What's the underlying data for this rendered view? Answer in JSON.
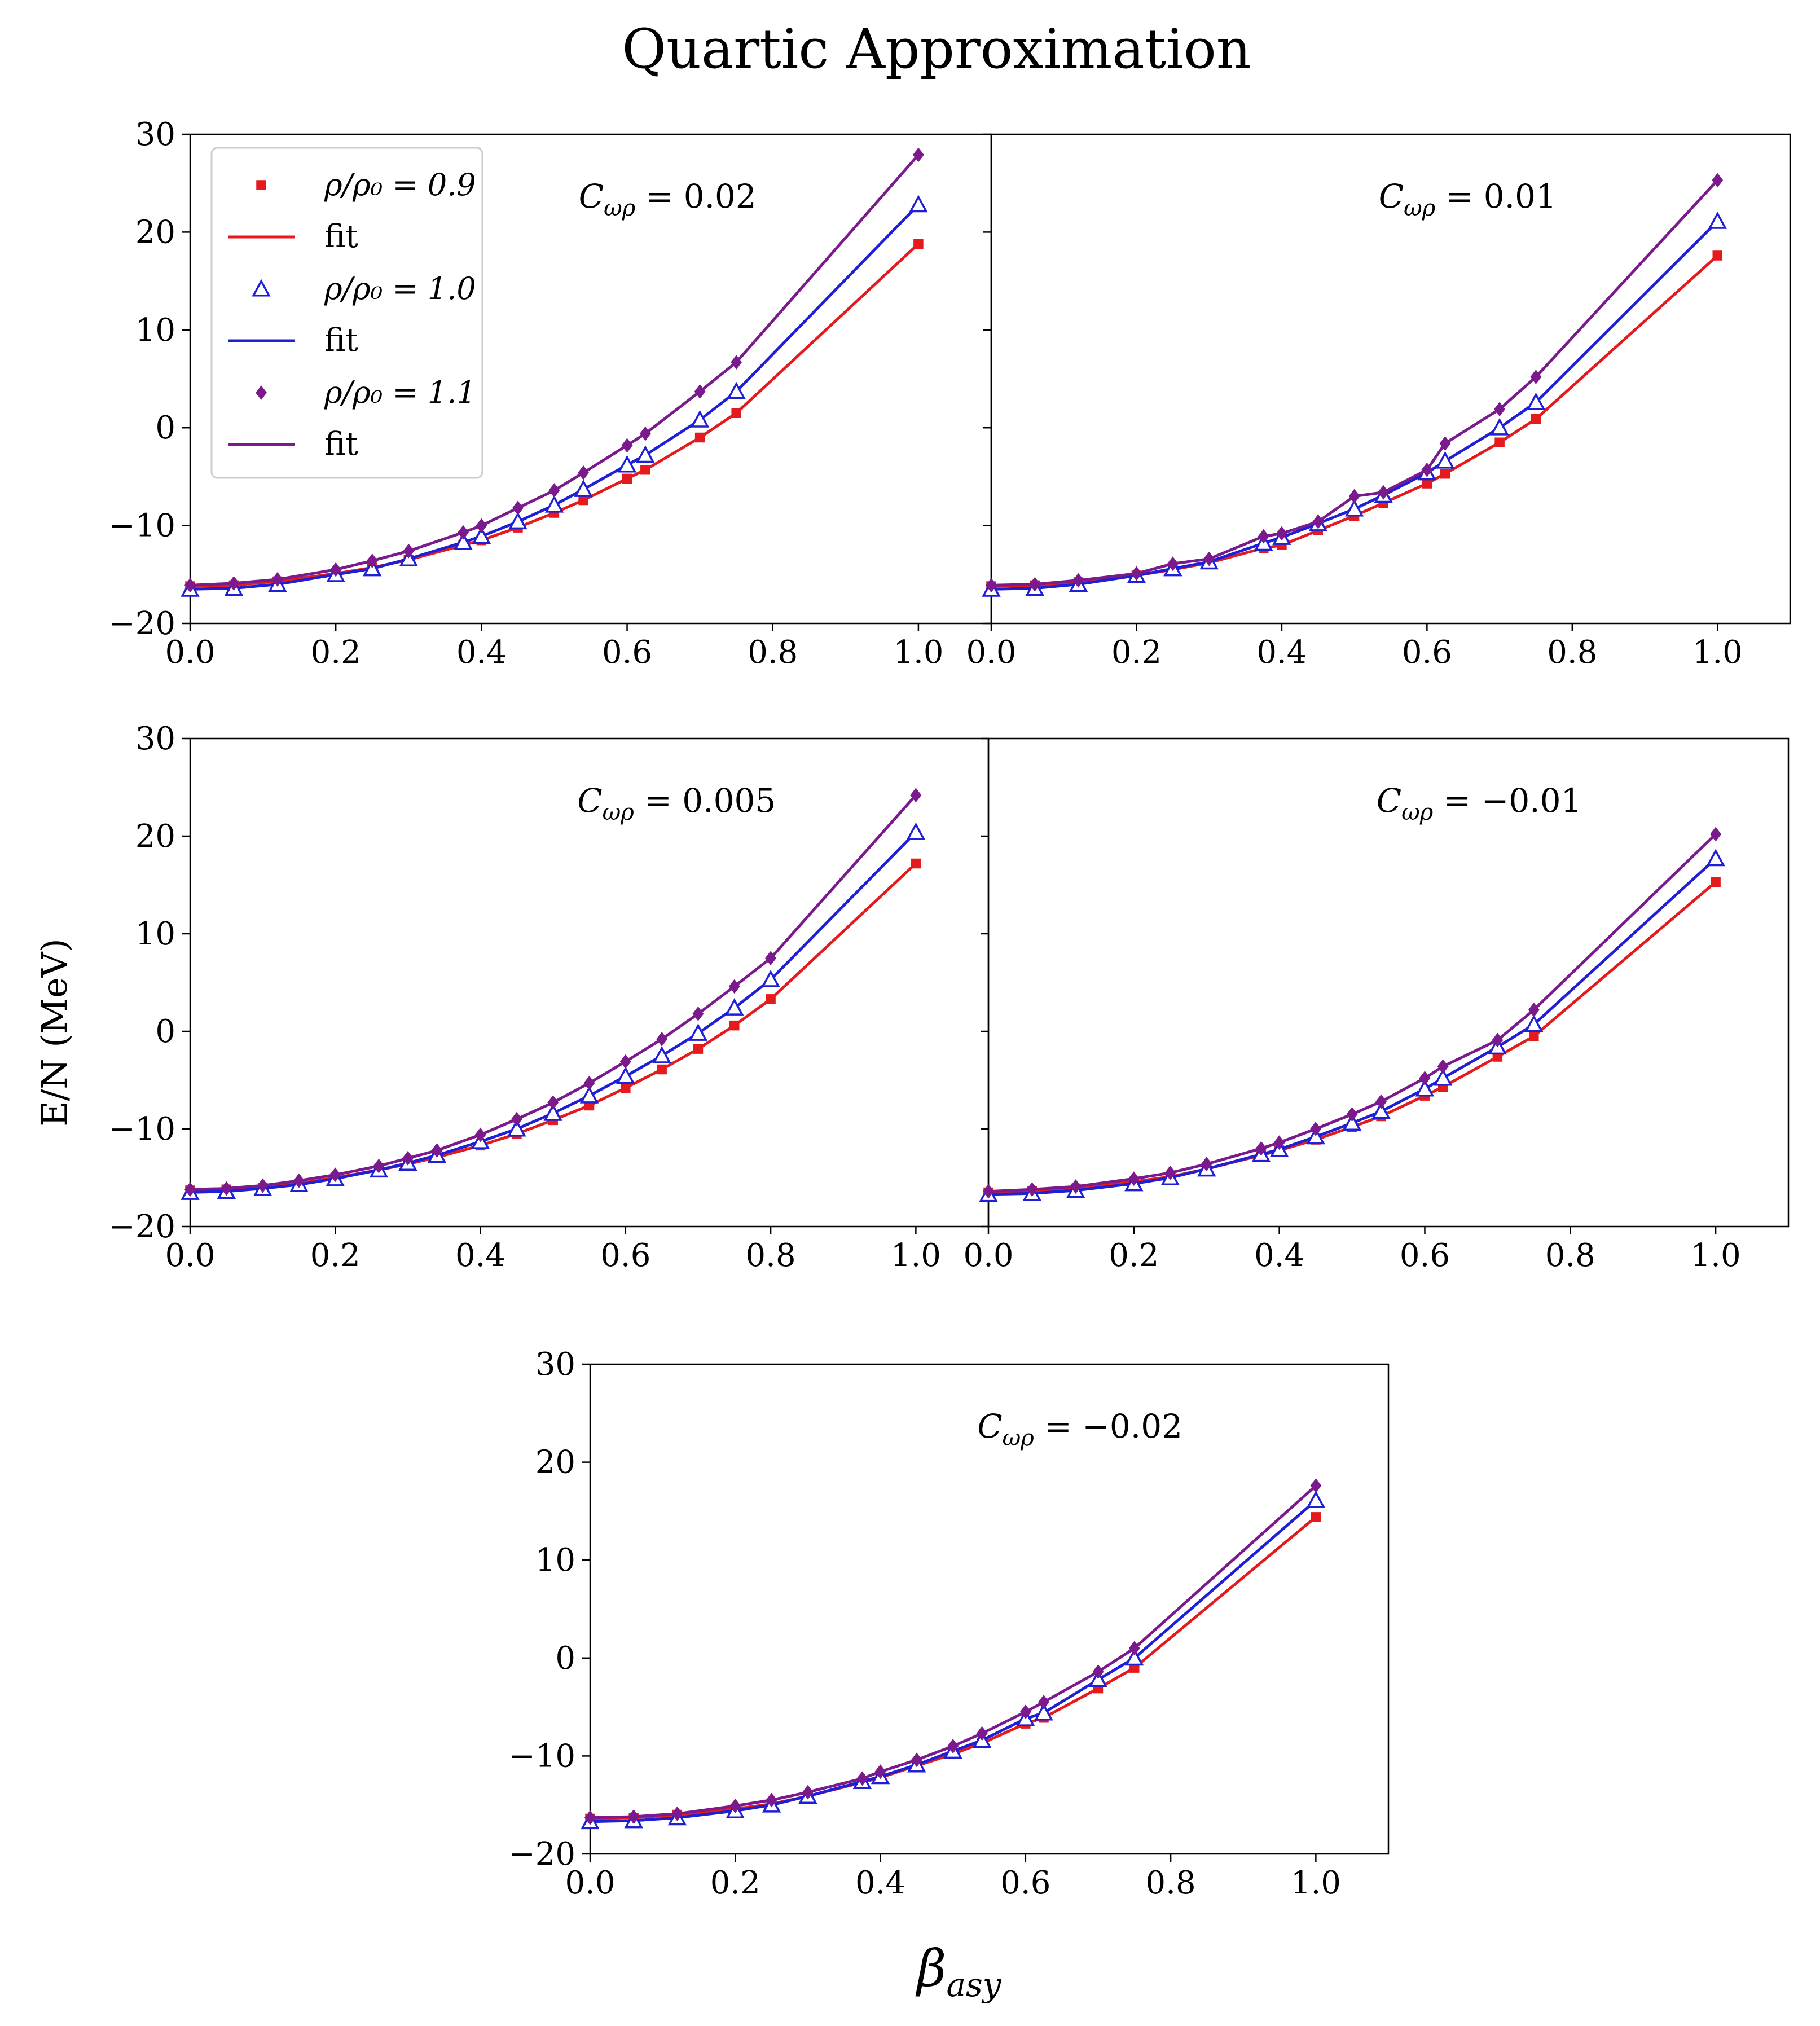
{
  "page": {
    "title": "Quartic Approximation",
    "ylabel": "E/N (MeV)",
    "xlabel": "β_asy"
  },
  "legend": {
    "items": [
      {
        "label": "ρ/ρ₀ = 0.9",
        "kind": "marker",
        "marker": "square",
        "color": "#e41a1c"
      },
      {
        "label": "fit",
        "kind": "line",
        "color": "#e41a1c"
      },
      {
        "label": "ρ/ρ₀ = 1.0",
        "kind": "marker",
        "marker": "triangle",
        "color": "#1f1fd6"
      },
      {
        "label": "fit",
        "kind": "line",
        "color": "#1f1fd6"
      },
      {
        "label": "ρ/ρ₀ = 1.1",
        "kind": "marker",
        "marker": "diamond",
        "color": "#7a1a8c"
      },
      {
        "label": "fit",
        "kind": "line",
        "color": "#7a1a8c"
      }
    ]
  },
  "chart_data": [
    {
      "type": "line",
      "annotation": "C_ωρ = 0.02",
      "xlim": [
        0.0,
        1.1
      ],
      "ylim": [
        -20,
        30
      ],
      "xticks": [
        "0.0",
        "0.2",
        "0.4",
        "0.6",
        "0.8",
        "1.0"
      ],
      "yticks": [
        "−20",
        "−10",
        "0",
        "10",
        "20",
        "30"
      ],
      "series": [
        {
          "name": "ρ/ρ₀ = 0.9",
          "color": "#e41a1c",
          "marker": "square",
          "x": [
            0,
            0.06,
            0.12,
            0.2,
            0.25,
            0.3,
            0.375,
            0.4,
            0.45,
            0.5,
            0.54,
            0.6,
            0.625,
            0.7,
            0.75,
            1.0
          ],
          "y": [
            -16.2,
            -16.1,
            -15.7,
            -14.9,
            -14.3,
            -13.5,
            -12.0,
            -11.5,
            -10.2,
            -8.7,
            -7.4,
            -5.2,
            -4.3,
            -1.0,
            1.5,
            18.8
          ]
        },
        {
          "name": "ρ/ρ₀ = 1.0",
          "color": "#1f1fd6",
          "marker": "triangle",
          "x": [
            0,
            0.06,
            0.12,
            0.2,
            0.25,
            0.3,
            0.375,
            0.4,
            0.45,
            0.5,
            0.54,
            0.6,
            0.625,
            0.7,
            0.75,
            1.0
          ],
          "y": [
            -16.5,
            -16.4,
            -16.0,
            -15.0,
            -14.4,
            -13.4,
            -11.7,
            -11.1,
            -9.6,
            -7.9,
            -6.3,
            -3.8,
            -2.8,
            0.8,
            3.7,
            22.8
          ]
        },
        {
          "name": "ρ/ρ₀ = 1.1",
          "color": "#7a1a8c",
          "marker": "diamond",
          "x": [
            0,
            0.06,
            0.12,
            0.2,
            0.25,
            0.3,
            0.375,
            0.4,
            0.45,
            0.5,
            0.54,
            0.6,
            0.625,
            0.7,
            0.75,
            1.0
          ],
          "y": [
            -16.1,
            -15.9,
            -15.5,
            -14.5,
            -13.6,
            -12.6,
            -10.7,
            -10.0,
            -8.2,
            -6.4,
            -4.6,
            -1.8,
            -0.6,
            3.7,
            6.7,
            27.9
          ]
        }
      ]
    },
    {
      "type": "line",
      "annotation": "C_ωρ = 0.01",
      "xlim": [
        0.0,
        1.1
      ],
      "ylim": [
        -20,
        30
      ],
      "xticks": [
        "0.0",
        "0.2",
        "0.4",
        "0.6",
        "0.8",
        "1.0"
      ],
      "yticks": [],
      "series": [
        {
          "name": "ρ/ρ₀ = 0.9",
          "color": "#e41a1c",
          "marker": "square",
          "x": [
            0,
            0.06,
            0.12,
            0.2,
            0.25,
            0.3,
            0.375,
            0.4,
            0.45,
            0.5,
            0.54,
            0.6,
            0.625,
            0.7,
            0.75,
            1.0
          ],
          "y": [
            -16.2,
            -16.1,
            -15.8,
            -15.1,
            -14.5,
            -13.8,
            -12.3,
            -12.0,
            -10.5,
            -9.0,
            -7.7,
            -5.7,
            -4.7,
            -1.5,
            0.9,
            17.6
          ]
        },
        {
          "name": "ρ/ρ₀ = 1.0",
          "color": "#1f1fd6",
          "marker": "triangle",
          "x": [
            0,
            0.06,
            0.12,
            0.2,
            0.25,
            0.3,
            0.375,
            0.4,
            0.45,
            0.5,
            0.54,
            0.6,
            0.625,
            0.7,
            0.75,
            1.0
          ],
          "y": [
            -16.5,
            -16.4,
            -16.0,
            -15.1,
            -14.4,
            -13.7,
            -11.8,
            -11.2,
            -9.8,
            -8.3,
            -6.9,
            -4.6,
            -3.4,
            0.0,
            2.6,
            21.1
          ]
        },
        {
          "name": "ρ/ρ₀ = 1.1",
          "color": "#7a1a8c",
          "marker": "diamond",
          "x": [
            0,
            0.06,
            0.12,
            0.2,
            0.25,
            0.3,
            0.375,
            0.4,
            0.45,
            0.5,
            0.54,
            0.6,
            0.625,
            0.7,
            0.75,
            1.0
          ],
          "y": [
            -16.1,
            -16.0,
            -15.6,
            -14.9,
            -13.9,
            -13.4,
            -11.1,
            -10.8,
            -9.6,
            -7.0,
            -6.6,
            -4.3,
            -1.6,
            1.9,
            5.2,
            25.3
          ]
        }
      ]
    },
    {
      "type": "line",
      "annotation": "C_ωρ = 0.005",
      "xlim": [
        0.0,
        1.1
      ],
      "ylim": [
        -20,
        30
      ],
      "xticks": [
        "0.0",
        "0.2",
        "0.4",
        "0.6",
        "0.8",
        "1.0"
      ],
      "yticks": [
        "−20",
        "−10",
        "0",
        "10",
        "20",
        "30"
      ],
      "series": [
        {
          "name": "ρ/ρ₀ = 0.9",
          "color": "#e41a1c",
          "marker": "square",
          "x": [
            0,
            0.05,
            0.1,
            0.15,
            0.2,
            0.26,
            0.3,
            0.34,
            0.4,
            0.45,
            0.5,
            0.55,
            0.6,
            0.65,
            0.7,
            0.75,
            0.8,
            1.0
          ],
          "y": [
            -16.3,
            -16.2,
            -16.0,
            -15.6,
            -15.0,
            -14.2,
            -13.6,
            -12.9,
            -11.7,
            -10.5,
            -9.1,
            -7.6,
            -5.8,
            -3.9,
            -1.8,
            0.6,
            3.3,
            17.2
          ]
        },
        {
          "name": "ρ/ρ₀ = 1.0",
          "color": "#1f1fd6",
          "marker": "triangle",
          "x": [
            0,
            0.05,
            0.1,
            0.15,
            0.2,
            0.26,
            0.3,
            0.34,
            0.4,
            0.45,
            0.5,
            0.55,
            0.6,
            0.65,
            0.7,
            0.75,
            0.8,
            1.0
          ],
          "y": [
            -16.5,
            -16.4,
            -16.1,
            -15.7,
            -15.1,
            -14.2,
            -13.5,
            -12.7,
            -11.3,
            -10.0,
            -8.4,
            -6.6,
            -4.6,
            -2.5,
            -0.2,
            2.4,
            5.3,
            20.4
          ]
        },
        {
          "name": "ρ/ρ₀ = 1.1",
          "color": "#7a1a8c",
          "marker": "diamond",
          "x": [
            0,
            0.05,
            0.1,
            0.15,
            0.2,
            0.26,
            0.3,
            0.34,
            0.4,
            0.45,
            0.5,
            0.55,
            0.6,
            0.65,
            0.7,
            0.75,
            0.8,
            1.0
          ],
          "y": [
            -16.2,
            -16.1,
            -15.8,
            -15.3,
            -14.7,
            -13.8,
            -13.0,
            -12.2,
            -10.6,
            -9.0,
            -7.3,
            -5.3,
            -3.1,
            -0.8,
            1.8,
            4.6,
            7.5,
            24.2
          ]
        }
      ]
    },
    {
      "type": "line",
      "annotation": "C_ωρ = −0.01",
      "xlim": [
        0.0,
        1.1
      ],
      "ylim": [
        -20,
        30
      ],
      "xticks": [
        "0.0",
        "0.2",
        "0.4",
        "0.6",
        "0.8",
        "1.0"
      ],
      "yticks": [],
      "series": [
        {
          "name": "ρ/ρ₀ = 0.9",
          "color": "#e41a1c",
          "marker": "square",
          "x": [
            0,
            0.06,
            0.12,
            0.2,
            0.25,
            0.3,
            0.375,
            0.4,
            0.45,
            0.5,
            0.54,
            0.6,
            0.625,
            0.7,
            0.75,
            1.0
          ],
          "y": [
            -16.5,
            -16.4,
            -16.1,
            -15.4,
            -14.9,
            -14.1,
            -12.7,
            -12.2,
            -11.1,
            -9.8,
            -8.7,
            -6.6,
            -5.7,
            -2.6,
            -0.5,
            15.3
          ]
        },
        {
          "name": "ρ/ρ₀ = 1.0",
          "color": "#1f1fd6",
          "marker": "triangle",
          "x": [
            0,
            0.06,
            0.12,
            0.2,
            0.25,
            0.3,
            0.375,
            0.4,
            0.45,
            0.5,
            0.54,
            0.6,
            0.625,
            0.7,
            0.75,
            1.0
          ],
          "y": [
            -16.7,
            -16.6,
            -16.3,
            -15.6,
            -15.0,
            -14.1,
            -12.6,
            -12.1,
            -10.8,
            -9.4,
            -8.2,
            -5.9,
            -4.8,
            -1.6,
            0.7,
            17.7
          ]
        },
        {
          "name": "ρ/ρ₀ = 1.1",
          "color": "#7a1a8c",
          "marker": "diamond",
          "x": [
            0,
            0.06,
            0.12,
            0.2,
            0.25,
            0.3,
            0.375,
            0.4,
            0.45,
            0.5,
            0.54,
            0.6,
            0.625,
            0.7,
            0.75,
            1.0
          ],
          "y": [
            -16.4,
            -16.2,
            -15.9,
            -15.1,
            -14.5,
            -13.6,
            -12.0,
            -11.4,
            -10.0,
            -8.5,
            -7.2,
            -4.8,
            -3.6,
            -0.9,
            2.2,
            20.2
          ]
        }
      ]
    },
    {
      "type": "line",
      "annotation": "C_ωρ = −0.02",
      "xlim": [
        0.0,
        1.1
      ],
      "ylim": [
        -20,
        30
      ],
      "xticks": [
        "0.0",
        "0.2",
        "0.4",
        "0.6",
        "0.8",
        "1.0"
      ],
      "yticks": [
        "−20",
        "−10",
        "0",
        "10",
        "20",
        "30"
      ],
      "series": [
        {
          "name": "ρ/ρ₀ = 0.9",
          "color": "#e41a1c",
          "marker": "square",
          "x": [
            0,
            0.06,
            0.12,
            0.2,
            0.25,
            0.3,
            0.375,
            0.4,
            0.45,
            0.5,
            0.54,
            0.6,
            0.625,
            0.7,
            0.75,
            1.0
          ],
          "y": [
            -16.4,
            -16.3,
            -16.0,
            -15.4,
            -14.9,
            -14.1,
            -12.7,
            -12.2,
            -11.0,
            -9.8,
            -8.7,
            -6.7,
            -6.1,
            -3.1,
            -1.0,
            14.4
          ]
        },
        {
          "name": "ρ/ρ₀ = 1.0",
          "color": "#1f1fd6",
          "marker": "triangle",
          "x": [
            0,
            0.06,
            0.12,
            0.2,
            0.25,
            0.3,
            0.375,
            0.4,
            0.45,
            0.5,
            0.54,
            0.6,
            0.625,
            0.7,
            0.75,
            1.0
          ],
          "y": [
            -16.7,
            -16.6,
            -16.3,
            -15.6,
            -15.0,
            -14.1,
            -12.6,
            -12.1,
            -10.9,
            -9.5,
            -8.4,
            -6.2,
            -5.6,
            -2.2,
            0.0,
            16.1
          ]
        },
        {
          "name": "ρ/ρ₀ = 1.1",
          "color": "#7a1a8c",
          "marker": "diamond",
          "x": [
            0,
            0.06,
            0.12,
            0.2,
            0.25,
            0.3,
            0.375,
            0.4,
            0.45,
            0.5,
            0.54,
            0.6,
            0.625,
            0.7,
            0.75,
            1.0
          ],
          "y": [
            -16.3,
            -16.2,
            -15.9,
            -15.1,
            -14.5,
            -13.7,
            -12.3,
            -11.6,
            -10.4,
            -9.0,
            -7.7,
            -5.5,
            -4.5,
            -1.4,
            1.0,
            17.6
          ]
        }
      ]
    }
  ]
}
